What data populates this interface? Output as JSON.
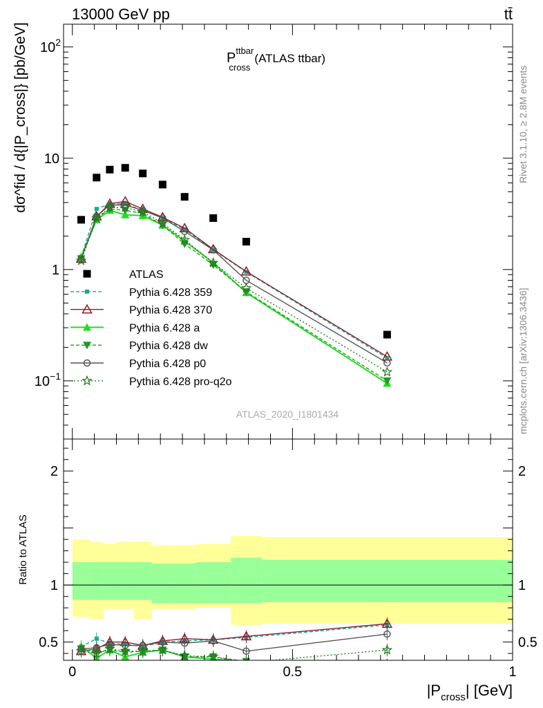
{
  "header": {
    "left": "13000 GeV pp",
    "right": "tt̄"
  },
  "side_labels": {
    "top": "Rivet 3.1.10, ≥ 2.8M events",
    "bottom": "mcplots.cern.ch [arXiv:1306.3436]"
  },
  "chart_data": [
    {
      "type": "line",
      "title_main": "P",
      "title_sup": "ttbar",
      "title_sub": "cross",
      "title_suffix": "(ATLAS ttbar)",
      "watermark": "ATLAS_2020_I1801434",
      "ylabel": "dσ^fid / d{|P_cross|} [pb/GeV]",
      "y_scale": "log",
      "ylim": [
        0.03,
        160
      ],
      "xlim": [
        -0.02,
        1.0
      ],
      "y_ticks": [
        {
          "v": 0.1,
          "base": "10",
          "exp": "−1"
        },
        {
          "v": 1,
          "text": "1"
        },
        {
          "v": 10,
          "text": "10"
        },
        {
          "v": 100,
          "base": "10",
          "exp": "2"
        }
      ],
      "x": [
        0.02,
        0.055,
        0.085,
        0.12,
        0.16,
        0.205,
        0.255,
        0.32,
        0.395,
        0.715
      ],
      "series": [
        {
          "name": "ATLAS",
          "color": "#000000",
          "marker": "square",
          "dash": "none",
          "line": false,
          "values": [
            2.8,
            6.7,
            7.9,
            8.2,
            7.3,
            5.8,
            4.5,
            2.9,
            1.78,
            0.26
          ]
        },
        {
          "name": "Pythia 6.428 359",
          "color": "#1aaa8a",
          "marker": "small-square",
          "dash": "5,3",
          "values": [
            1.3,
            3.5,
            3.9,
            3.9,
            3.4,
            2.9,
            2.3,
            1.5,
            0.95,
            0.16
          ]
        },
        {
          "name": "Pythia 6.428 370",
          "color": "#8b1a2b",
          "marker": "open-triangle",
          "dash": "none",
          "values": [
            1.25,
            3.0,
            3.9,
            4.1,
            3.5,
            2.95,
            2.35,
            1.52,
            0.96,
            0.165
          ]
        },
        {
          "name": "Pythia 6.428 a",
          "color": "#22dd22",
          "marker": "triangle",
          "dash": "none",
          "values": [
            1.3,
            2.8,
            3.4,
            3.1,
            3.05,
            2.5,
            1.8,
            1.15,
            0.62,
            0.095
          ]
        },
        {
          "name": "Pythia 6.428 dw",
          "color": "#229922",
          "marker": "triangle-down",
          "dash": "5,3",
          "values": [
            1.25,
            2.9,
            3.5,
            3.4,
            3.2,
            2.5,
            1.7,
            1.1,
            0.63,
            0.1
          ]
        },
        {
          "name": "Pythia 6.428 p0",
          "color": "#555555",
          "marker": "open-circle",
          "dash": "none",
          "values": [
            1.25,
            3.0,
            3.8,
            3.8,
            3.4,
            2.9,
            2.2,
            1.5,
            0.8,
            0.145
          ]
        },
        {
          "name": "Pythia 6.428 pro-q2o",
          "color": "#227722",
          "marker": "star",
          "dash": "2,3",
          "values": [
            1.2,
            2.9,
            3.6,
            3.6,
            3.3,
            2.6,
            1.85,
            1.15,
            0.68,
            0.12
          ]
        }
      ]
    },
    {
      "type": "line",
      "ylabel": "Ratio to ATLAS",
      "xlabel_main": "|P",
      "xlabel_sub": "cross",
      "xlabel_suffix": "| [GeV]",
      "ylim": [
        0.34,
        2.28
      ],
      "xlim": [
        -0.02,
        1.0
      ],
      "y_ticks": [
        0.5,
        1,
        2
      ],
      "x_ticks": [
        0,
        0.5,
        1
      ],
      "bins": [
        0,
        0.04,
        0.07,
        0.1,
        0.14,
        0.18,
        0.23,
        0.28,
        0.36,
        0.43,
        1.0
      ],
      "band_outer": [
        [
          0.72,
          1.4
        ],
        [
          0.7,
          1.38
        ],
        [
          0.79,
          1.36
        ],
        [
          0.79,
          1.38
        ],
        [
          0.7,
          1.38
        ],
        [
          0.79,
          1.35
        ],
        [
          0.79,
          1.35
        ],
        [
          0.8,
          1.36
        ],
        [
          0.65,
          1.43
        ],
        [
          0.66,
          1.42
        ]
      ],
      "band_inner": [
        [
          0.87,
          1.2
        ],
        [
          0.87,
          1.2
        ],
        [
          0.87,
          1.2
        ],
        [
          0.87,
          1.2
        ],
        [
          0.87,
          1.2
        ],
        [
          0.84,
          1.19
        ],
        [
          0.84,
          1.19
        ],
        [
          0.84,
          1.2
        ],
        [
          0.84,
          1.24
        ],
        [
          0.85,
          1.22
        ]
      ],
      "band_colors": {
        "outer": "#ffff99",
        "inner": "#99ff99"
      },
      "x": [
        0.02,
        0.055,
        0.085,
        0.12,
        0.16,
        0.205,
        0.255,
        0.32,
        0.395,
        0.715
      ],
      "series": [
        {
          "name": "Pythia 6.428 359",
          "color": "#1aaa8a",
          "marker": "small-square",
          "dash": "5,3",
          "values": [
            0.46,
            0.53,
            0.49,
            0.48,
            0.46,
            0.5,
            0.51,
            0.52,
            0.54,
            0.65
          ]
        },
        {
          "name": "Pythia 6.428 370",
          "color": "#8b1a2b",
          "marker": "open-triangle",
          "dash": "none",
          "values": [
            0.42,
            0.44,
            0.5,
            0.5,
            0.47,
            0.51,
            0.53,
            0.52,
            0.55,
            0.66
          ]
        },
        {
          "name": "Pythia 6.428 a",
          "color": "#22dd22",
          "marker": "triangle",
          "dash": "none",
          "values": [
            0.46,
            0.36,
            0.43,
            0.37,
            0.41,
            0.43,
            0.37,
            0.35,
            0.33,
            0.3
          ]
        },
        {
          "name": "Pythia 6.428 dw",
          "color": "#229922",
          "marker": "triangle-down",
          "dash": "5,3",
          "values": [
            0.44,
            0.41,
            0.43,
            0.41,
            0.42,
            0.43,
            0.37,
            0.37,
            0.33,
            0.3
          ]
        },
        {
          "name": "Pythia 6.428 p0",
          "color": "#555555",
          "marker": "open-circle",
          "dash": "none",
          "values": [
            0.44,
            0.45,
            0.48,
            0.47,
            0.47,
            0.5,
            0.49,
            0.51,
            0.42,
            0.57
          ]
        },
        {
          "name": "Pythia 6.428 pro-q2o",
          "color": "#227722",
          "marker": "star",
          "dash": "2,3",
          "values": [
            0.42,
            0.4,
            0.44,
            0.42,
            0.42,
            0.43,
            0.38,
            0.37,
            0.32,
            0.43
          ]
        }
      ]
    }
  ]
}
